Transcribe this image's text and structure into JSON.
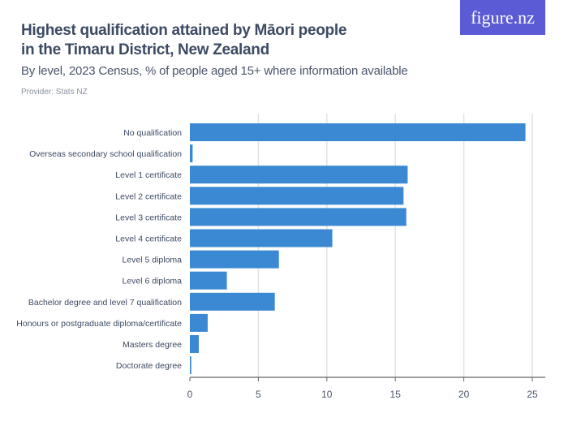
{
  "header": {
    "title": "Highest qualification attained by Māori people in the Timaru District, New Zealand",
    "subtitle": "By level, 2023 Census, % of people aged 15+ where information available",
    "provider": "Provider: Stats NZ",
    "logo": "figure.nz"
  },
  "chart_data": {
    "type": "bar",
    "orientation": "horizontal",
    "categories": [
      "No qualification",
      "Overseas secondary school qualification",
      "Level 1 certificate",
      "Level 2 certificate",
      "Level 3 certificate",
      "Level 4 certificate",
      "Level 5 diploma",
      "Level 6 diploma",
      "Bachelor degree and level 7 qualification",
      "Honours or postgraduate diploma/certificate",
      "Masters degree",
      "Doctorate degree"
    ],
    "values": [
      24.5,
      0.2,
      15.9,
      15.6,
      15.8,
      10.4,
      6.5,
      2.7,
      6.2,
      1.3,
      0.65,
      0.1
    ],
    "xlim": [
      0,
      25
    ],
    "xticks": [
      0,
      5,
      10,
      15,
      20,
      25
    ],
    "grid": true,
    "bar_color": "#3a89d2"
  }
}
